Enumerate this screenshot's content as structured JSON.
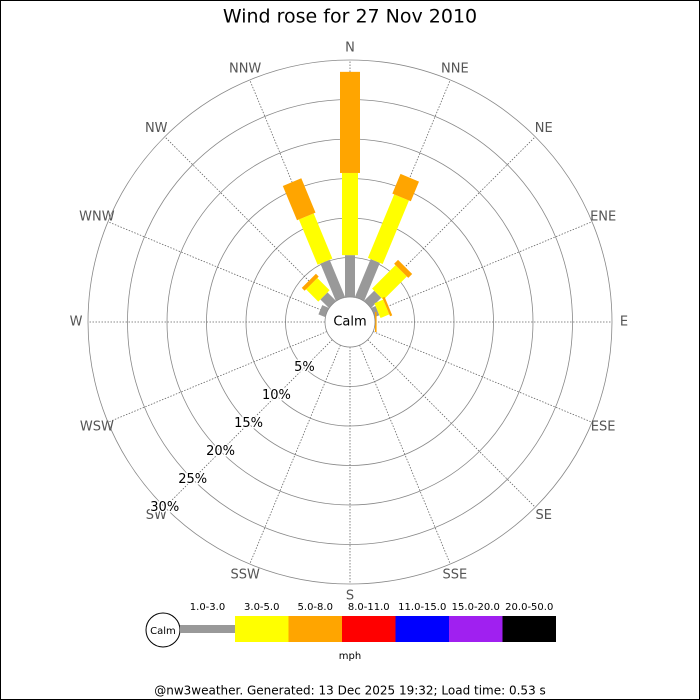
{
  "chart_data": {
    "type": "windrose",
    "title": "Wind rose for 27 Nov 2010",
    "categories": [
      "N",
      "NNE",
      "NE",
      "ENE",
      "E",
      "ESE",
      "SE",
      "SSE",
      "S",
      "SSW",
      "SW",
      "WSW",
      "W",
      "WNW",
      "NW",
      "NNW"
    ],
    "calm_label": "Calm",
    "rlim": [
      0,
      30
    ],
    "rticks": [
      {
        "value": 5,
        "label": "5%"
      },
      {
        "value": 10,
        "label": "10%"
      },
      {
        "value": 15,
        "label": "15%"
      },
      {
        "value": 20,
        "label": "20%"
      },
      {
        "value": 25,
        "label": "25%"
      },
      {
        "value": 30,
        "label": "30%"
      }
    ],
    "series": [
      {
        "name": "1.0-3.0",
        "color": "#999999",
        "values": [
          5.3,
          5.2,
          1.8,
          0.6,
          0,
          0,
          0,
          0,
          0,
          0,
          0,
          0,
          0,
          0.9,
          1.5,
          5.1
        ]
      },
      {
        "name": "3.0-5.0",
        "color": "#ffff00",
        "values": [
          10.4,
          8.7,
          4.2,
          1.2,
          0,
          0,
          0,
          0,
          0,
          0,
          0,
          0,
          0,
          0,
          2.2,
          6.2
        ]
      },
      {
        "name": "5.0-8.0",
        "color": "#ffa500",
        "values": [
          12.8,
          2.7,
          0.7,
          0.3,
          0.2,
          0,
          0,
          0,
          0,
          0,
          0,
          0,
          0,
          0,
          0.5,
          4.7
        ]
      },
      {
        "name": "8.0-11.0",
        "color": "#ff0000",
        "values": [
          0,
          0,
          0,
          0,
          0,
          0,
          0,
          0,
          0,
          0,
          0,
          0,
          0,
          0,
          0,
          0
        ]
      },
      {
        "name": "11.0-15.0",
        "color": "#0000ff",
        "values": [
          0,
          0,
          0,
          0,
          0,
          0,
          0,
          0,
          0,
          0,
          0,
          0,
          0,
          0,
          0,
          0
        ]
      },
      {
        "name": "15.0-20.0",
        "color": "#a020f0",
        "values": [
          0,
          0,
          0,
          0,
          0,
          0,
          0,
          0,
          0,
          0,
          0,
          0,
          0,
          0,
          0,
          0
        ]
      },
      {
        "name": "20.0-50.0",
        "color": "#000000",
        "values": [
          0,
          0,
          0,
          0,
          0,
          0,
          0,
          0,
          0,
          0,
          0,
          0,
          0,
          0,
          0,
          0
        ]
      }
    ],
    "legend_unit": "mph",
    "footer": "@nw3weather.  Generated: 13 Dec 2025 19:32; Load time: 0.53 s"
  }
}
